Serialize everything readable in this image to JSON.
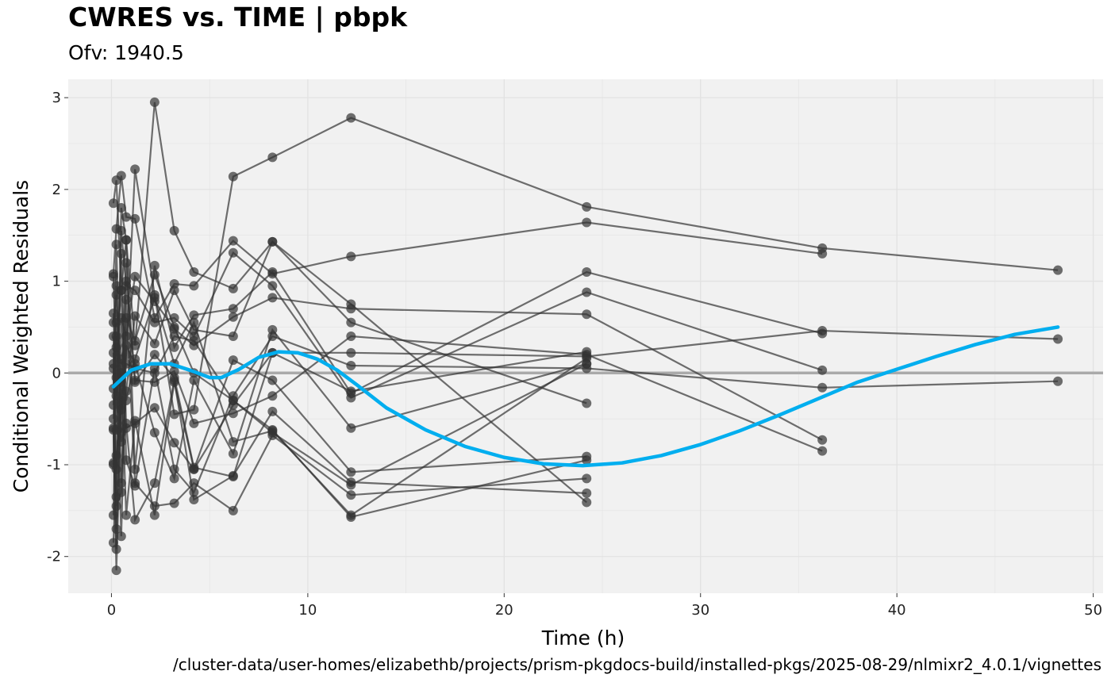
{
  "chart_data": {
    "type": "line",
    "title": "CWRES vs. TIME | pbpk",
    "subtitle": "Ofv: 1940.5",
    "xlabel": "Time (h)",
    "ylabel": "Conditional Weighted Residuals",
    "caption": "/cluster-data/user-homes/elizabethb/projects/prism-pkgdocs-build/installed-pkgs/2025-08-29/nlmixr2_4.0.1/vignettes",
    "xlim": [
      -2.2,
      50.5
    ],
    "ylim": [
      -2.4,
      3.2
    ],
    "xticks": [
      0,
      10,
      20,
      30,
      40,
      50
    ],
    "yticks": [
      -2,
      -1,
      0,
      1,
      2,
      3
    ],
    "grid": true,
    "reference_line_y": 0,
    "colors": {
      "points": "#333333",
      "smooth": "#00AEEF",
      "reference": "#AAAAAA",
      "panel": "#F1F1F1",
      "grid": "#E2E2E2"
    },
    "subjects": [
      [
        [
          0.1,
          1.85
        ],
        [
          0.25,
          2.1
        ],
        [
          0.5,
          0.9
        ],
        [
          0.75,
          1.45
        ],
        [
          1.2,
          0.3
        ],
        [
          2.2,
          2.95
        ],
        [
          3.2,
          1.55
        ],
        [
          4.2,
          1.1
        ],
        [
          6.2,
          0.92
        ],
        [
          8.2,
          1.43
        ],
        [
          12.2,
          0.75
        ],
        [
          24.2,
          -1.41
        ]
      ],
      [
        [
          0.1,
          -0.6
        ],
        [
          0.25,
          -2.15
        ],
        [
          0.5,
          -0.3
        ],
        [
          0.75,
          0.2
        ],
        [
          1.2,
          2.22
        ],
        [
          2.2,
          0.85
        ],
        [
          3.2,
          -0.45
        ],
        [
          4.2,
          -0.4
        ],
        [
          6.2,
          2.14
        ],
        [
          8.2,
          2.35
        ],
        [
          12.2,
          2.78
        ],
        [
          24.2,
          1.81
        ],
        [
          36.2,
          1.36
        ],
        [
          48.2,
          1.12
        ]
      ],
      [
        [
          0.1,
          1.08
        ],
        [
          0.25,
          1.57
        ],
        [
          0.5,
          2.15
        ],
        [
          0.75,
          1.7
        ],
        [
          1.2,
          1.68
        ],
        [
          2.2,
          0.6
        ],
        [
          3.2,
          0.97
        ],
        [
          4.2,
          0.95
        ],
        [
          6.2,
          1.44
        ],
        [
          8.2,
          1.08
        ],
        [
          12.2,
          1.27
        ],
        [
          24.2,
          1.64
        ],
        [
          36.2,
          1.3
        ]
      ],
      [
        [
          0.1,
          -0.98
        ],
        [
          0.25,
          -1.35
        ],
        [
          0.5,
          1.8
        ],
        [
          0.75,
          1.45
        ],
        [
          1.2,
          -1.05
        ],
        [
          2.2,
          1.17
        ],
        [
          3.2,
          0.28
        ],
        [
          4.2,
          0.63
        ],
        [
          6.2,
          0.7
        ],
        [
          8.2,
          1.1
        ],
        [
          12.2,
          -0.22
        ],
        [
          24.2,
          1.1
        ],
        [
          36.2,
          0.43
        ]
      ],
      [
        [
          0.1,
          0.65
        ],
        [
          0.25,
          -0.62
        ],
        [
          0.5,
          1.55
        ],
        [
          0.75,
          0.95
        ],
        [
          1.2,
          0.9
        ],
        [
          2.2,
          0.55
        ],
        [
          3.2,
          0.6
        ],
        [
          4.2,
          0.4
        ],
        [
          6.2,
          1.31
        ],
        [
          8.2,
          0.95
        ],
        [
          12.2,
          -0.27
        ],
        [
          24.2,
          0.88
        ],
        [
          36.2,
          0.03
        ]
      ],
      [
        [
          0.1,
          0.22
        ],
        [
          0.25,
          -1.7
        ],
        [
          0.5,
          0.6
        ],
        [
          0.75,
          0.4
        ],
        [
          1.2,
          1.05
        ],
        [
          2.2,
          0.78
        ],
        [
          3.2,
          0.48
        ],
        [
          4.2,
          0.3
        ],
        [
          6.2,
          0.61
        ],
        [
          8.2,
          0.82
        ],
        [
          12.2,
          0.7
        ],
        [
          24.2,
          0.64
        ],
        [
          36.2,
          -0.73
        ]
      ],
      [
        [
          0.1,
          -0.5
        ],
        [
          0.25,
          0.55
        ],
        [
          0.5,
          -1.2
        ],
        [
          0.75,
          -0.2
        ],
        [
          1.2,
          0.62
        ],
        [
          2.2,
          0.32
        ],
        [
          3.2,
          0.9
        ],
        [
          4.2,
          0.47
        ],
        [
          6.2,
          0.4
        ],
        [
          8.2,
          1.43
        ],
        [
          12.2,
          0.55
        ],
        [
          24.2,
          -0.33
        ]
      ],
      [
        [
          0.1,
          0.05
        ],
        [
          0.25,
          -0.25
        ],
        [
          0.5,
          1.3
        ],
        [
          0.75,
          -0.6
        ],
        [
          1.2,
          -0.55
        ],
        [
          2.2,
          -0.38
        ],
        [
          3.2,
          -0.76
        ],
        [
          4.2,
          -1.05
        ],
        [
          6.2,
          -0.35
        ],
        [
          8.2,
          0.22
        ],
        [
          12.2,
          0.22
        ],
        [
          24.2,
          0.18
        ],
        [
          36.2,
          0.46
        ],
        [
          48.2,
          0.37
        ]
      ],
      [
        [
          0.1,
          -1.55
        ],
        [
          0.25,
          0.28
        ],
        [
          0.5,
          0.9
        ],
        [
          0.75,
          -0.95
        ],
        [
          1.2,
          -1.23
        ],
        [
          2.2,
          0.05
        ],
        [
          3.2,
          -1.05
        ],
        [
          4.2,
          -1.3
        ],
        [
          6.2,
          -0.25
        ],
        [
          8.2,
          0.4
        ],
        [
          12.2,
          0.08
        ],
        [
          24.2,
          0.05
        ],
        [
          36.2,
          -0.16
        ],
        [
          48.2,
          -0.09
        ]
      ],
      [
        [
          0.1,
          -1.85
        ],
        [
          0.25,
          -0.9
        ],
        [
          0.5,
          -0.35
        ],
        [
          0.75,
          1.0
        ],
        [
          1.2,
          -0.08
        ],
        [
          2.2,
          -0.1
        ],
        [
          3.2,
          0.02
        ],
        [
          4.2,
          -0.55
        ],
        [
          6.2,
          -0.44
        ],
        [
          8.2,
          -0.25
        ],
        [
          12.2,
          0.4
        ],
        [
          24.2,
          0.2
        ],
        [
          36.2,
          -0.85
        ]
      ],
      [
        [
          0.1,
          1.05
        ],
        [
          0.25,
          -0.05
        ],
        [
          0.5,
          -1.78
        ],
        [
          0.75,
          0.3
        ],
        [
          1.2,
          0.1
        ],
        [
          2.2,
          -0.65
        ],
        [
          3.2,
          -1.15
        ],
        [
          4.2,
          -0.08
        ],
        [
          6.2,
          -0.88
        ],
        [
          8.2,
          0.47
        ],
        [
          12.2,
          -0.6
        ],
        [
          24.2,
          0.1
        ]
      ],
      [
        [
          0.1,
          0.4
        ],
        [
          0.25,
          -1.05
        ],
        [
          0.5,
          0.0
        ],
        [
          0.75,
          -1.55
        ],
        [
          1.2,
          -0.52
        ],
        [
          2.2,
          -1.55
        ],
        [
          3.2,
          -0.1
        ],
        [
          4.2,
          -1.05
        ],
        [
          6.2,
          0.14
        ],
        [
          8.2,
          -0.08
        ],
        [
          12.2,
          -1.08
        ],
        [
          24.2,
          -0.91
        ]
      ],
      [
        [
          0.1,
          -0.17
        ],
        [
          0.25,
          1.4
        ],
        [
          0.5,
          -0.65
        ],
        [
          0.75,
          0.6
        ],
        [
          1.2,
          0.35
        ],
        [
          2.2,
          1.07
        ],
        [
          3.2,
          0.5
        ],
        [
          4.2,
          0.0
        ],
        [
          6.2,
          -0.3
        ],
        [
          8.2,
          -0.62
        ],
        [
          12.2,
          -1.57
        ],
        [
          24.2,
          -0.95
        ]
      ],
      [
        [
          0.1,
          -1.0
        ],
        [
          0.25,
          0.95
        ],
        [
          0.5,
          -0.75
        ],
        [
          0.75,
          -0.55
        ],
        [
          1.2,
          -1.6
        ],
        [
          2.2,
          -1.2
        ],
        [
          3.2,
          -0.08
        ],
        [
          4.2,
          -1.38
        ],
        [
          6.2,
          -1.12
        ],
        [
          8.2,
          -0.42
        ],
        [
          12.2,
          -1.19
        ],
        [
          24.2,
          -1.31
        ]
      ],
      [
        [
          0.1,
          0.1
        ],
        [
          0.25,
          -1.45
        ],
        [
          0.5,
          -1.3
        ],
        [
          0.75,
          0.8
        ],
        [
          1.2,
          -1.2
        ],
        [
          2.2,
          -1.45
        ],
        [
          3.2,
          -1.42
        ],
        [
          4.2,
          -1.2
        ],
        [
          6.2,
          -1.5
        ],
        [
          8.2,
          -0.68
        ],
        [
          12.2,
          -1.33
        ],
        [
          24.2,
          -1.15
        ]
      ],
      [
        [
          0.1,
          -0.62
        ],
        [
          0.25,
          -1.92
        ],
        [
          0.5,
          0.15
        ],
        [
          0.75,
          -0.3
        ],
        [
          1.2,
          0.15
        ],
        [
          2.2,
          0.82
        ],
        [
          3.2,
          0.1
        ],
        [
          4.2,
          0.55
        ],
        [
          6.2,
          -0.75
        ],
        [
          8.2,
          -0.63
        ],
        [
          12.2,
          -1.55
        ],
        [
          24.2,
          0.16
        ]
      ],
      [
        [
          0.1,
          0.55
        ],
        [
          0.25,
          0.85
        ],
        [
          0.5,
          -0.1
        ],
        [
          0.75,
          1.2
        ],
        [
          1.2,
          -0.1
        ],
        [
          2.2,
          0.2
        ],
        [
          3.2,
          -0.05
        ],
        [
          4.2,
          -1.03
        ],
        [
          6.2,
          -1.13
        ],
        [
          8.2,
          0.22
        ],
        [
          12.2,
          -0.2
        ],
        [
          24.2,
          0.23
        ]
      ],
      [
        [
          0.1,
          -0.35
        ],
        [
          0.25,
          0.4
        ],
        [
          0.5,
          -0.4
        ],
        [
          0.75,
          0.1
        ],
        [
          1.2,
          0.05
        ],
        [
          2.2,
          0.0
        ],
        [
          3.2,
          0.4
        ],
        [
          4.2,
          0.35
        ],
        [
          6.2,
          -0.3
        ],
        [
          8.2,
          -0.65
        ],
        [
          12.2,
          -1.22
        ],
        [
          24.2,
          0.1
        ]
      ]
    ],
    "smooth": [
      [
        0.1,
        -0.15
      ],
      [
        1,
        0.03
      ],
      [
        2,
        0.1
      ],
      [
        3,
        0.1
      ],
      [
        4,
        0.03
      ],
      [
        5,
        -0.05
      ],
      [
        5.6,
        -0.05
      ],
      [
        6.5,
        0.04
      ],
      [
        7.5,
        0.17
      ],
      [
        8.5,
        0.23
      ],
      [
        9.5,
        0.22
      ],
      [
        10.5,
        0.15
      ],
      [
        11.5,
        0.03
      ],
      [
        12.5,
        -0.13
      ],
      [
        14,
        -0.38
      ],
      [
        16,
        -0.62
      ],
      [
        18,
        -0.8
      ],
      [
        20,
        -0.92
      ],
      [
        22,
        -0.99
      ],
      [
        24,
        -1.01
      ],
      [
        26,
        -0.98
      ],
      [
        28,
        -0.9
      ],
      [
        30,
        -0.78
      ],
      [
        32,
        -0.63
      ],
      [
        34,
        -0.46
      ],
      [
        36,
        -0.28
      ],
      [
        38,
        -0.1
      ],
      [
        40,
        0.04
      ],
      [
        42,
        0.18
      ],
      [
        44,
        0.31
      ],
      [
        46,
        0.42
      ],
      [
        48.2,
        0.5
      ]
    ]
  }
}
